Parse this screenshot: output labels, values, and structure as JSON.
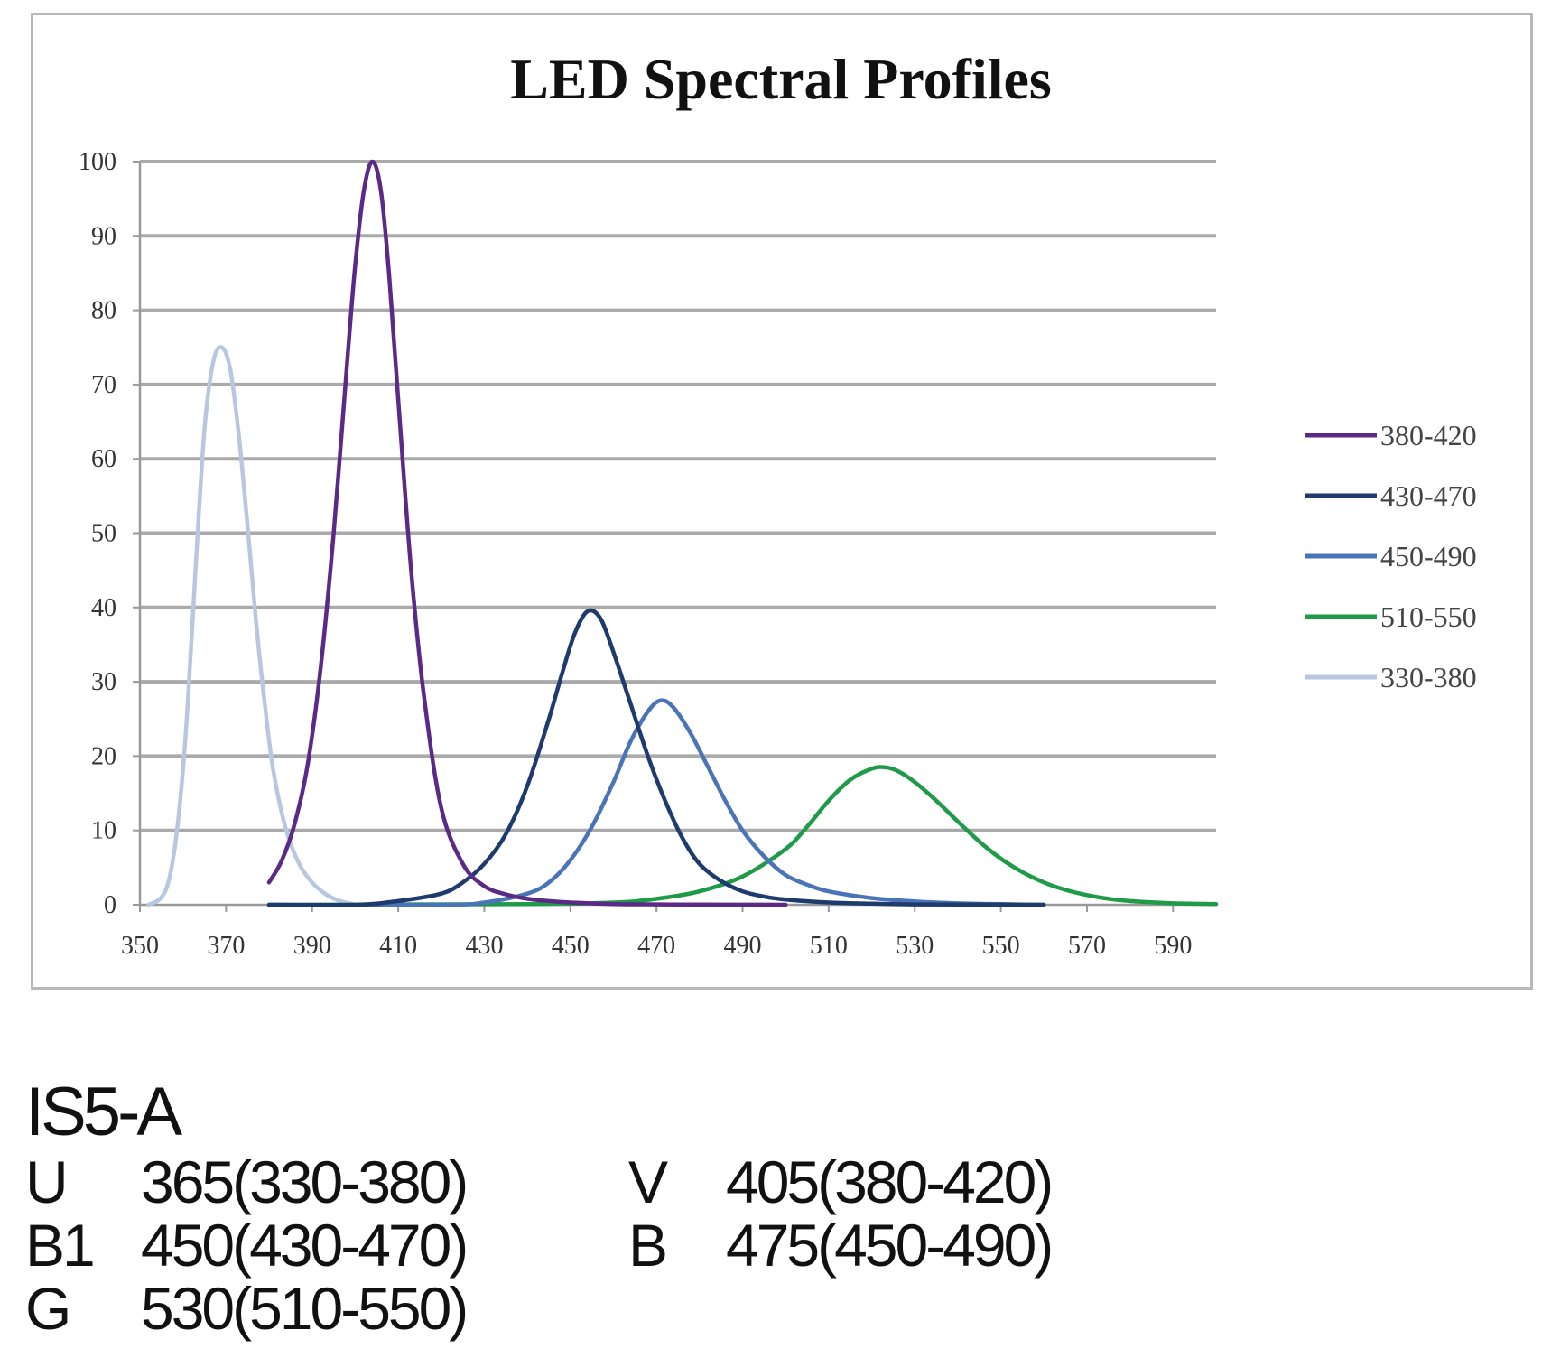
{
  "chart_data": {
    "type": "line",
    "title": "LED Spectral Profiles",
    "xlabel": "",
    "ylabel": "",
    "xlim": [
      350,
      600
    ],
    "ylim": [
      0,
      100
    ],
    "x_ticks": [
      "350",
      "370",
      "390",
      "410",
      "430",
      "450",
      "470",
      "490",
      "510",
      "530",
      "550",
      "570",
      "590"
    ],
    "y_ticks": [
      "0",
      "10",
      "20",
      "30",
      "40",
      "50",
      "60",
      "70",
      "80",
      "90",
      "100"
    ],
    "grid": true,
    "legend_position": "right",
    "series": [
      {
        "name": "380-420",
        "color": "#5b2a86",
        "x": [
          380,
          383,
          386,
          389,
          392,
          395,
          398,
          400,
          402,
          404,
          406,
          408,
          410,
          413,
          416,
          420,
          425,
          430,
          435,
          440,
          445,
          450,
          460,
          470,
          480,
          490,
          500
        ],
        "y": [
          3,
          6,
          11,
          19,
          32,
          50,
          72,
          86,
          96,
          100,
          96,
          84,
          68,
          45,
          28,
          13,
          5.5,
          2.5,
          1.4,
          0.8,
          0.5,
          0.3,
          0.1,
          0.05,
          0.02,
          0.01,
          0
        ]
      },
      {
        "name": "430-470",
        "color": "#1f3b6e",
        "x": [
          380,
          400,
          410,
          420,
          425,
          430,
          435,
          440,
          445,
          448,
          451,
          454,
          457,
          460,
          464,
          468,
          472,
          476,
          480,
          485,
          490,
          495,
          500,
          510,
          520,
          530,
          545,
          560
        ],
        "y": [
          0,
          0,
          0.5,
          1.5,
          3,
          5.5,
          9.5,
          16,
          25,
          31,
          36.5,
          39.5,
          38.5,
          34,
          27,
          20,
          14,
          9,
          5.5,
          3.2,
          1.8,
          1.1,
          0.7,
          0.3,
          0.15,
          0.05,
          0.02,
          0
        ]
      },
      {
        "name": "450-490",
        "color": "#4b74b8",
        "x": [
          380,
          420,
          430,
          440,
          445,
          450,
          455,
          460,
          464,
          468,
          471,
          474,
          478,
          482,
          486,
          490,
          495,
          500,
          505,
          510,
          520,
          530,
          540,
          550,
          560
        ],
        "y": [
          0,
          0,
          0.3,
          1.5,
          3,
          6,
          10.5,
          16.5,
          22,
          26,
          27.5,
          26.5,
          23,
          18.5,
          14,
          10,
          6.5,
          4,
          2.7,
          1.8,
          0.9,
          0.45,
          0.2,
          0.08,
          0
        ]
      },
      {
        "name": "510-550",
        "color": "#1f9a48",
        "x": [
          380,
          440,
          460,
          470,
          480,
          490,
          500,
          505,
          510,
          515,
          520,
          523,
          526,
          530,
          535,
          540,
          545,
          550,
          555,
          560,
          565,
          570,
          575,
          580,
          590,
          600
        ],
        "y": [
          0,
          0.1,
          0.3,
          0.8,
          1.8,
          3.8,
          7.5,
          10.5,
          14,
          16.8,
          18.3,
          18.5,
          18,
          16.5,
          14,
          11.2,
          8.5,
          6.2,
          4.4,
          3,
          2,
          1.3,
          0.8,
          0.5,
          0.2,
          0.1
        ]
      },
      {
        "name": "330-380",
        "color": "#b8c7e0",
        "x": [
          352,
          355,
          357,
          359,
          361,
          363,
          365,
          367,
          369,
          371,
          373,
          375,
          377,
          379,
          381,
          384,
          387,
          390,
          393,
          396,
          400
        ],
        "y": [
          0,
          1,
          4,
          12,
          26,
          46,
          64,
          73,
          75,
          72,
          63,
          51,
          38,
          27,
          18,
          10,
          5.5,
          3,
          1.5,
          0.6,
          0
        ]
      }
    ]
  },
  "led_info": {
    "model": "IS5-A",
    "rows": [
      {
        "code_1": "U",
        "spec_1": "365(330-380)",
        "code_2": "V",
        "spec_2": "405(380-420)"
      },
      {
        "code_1": "B1",
        "spec_1": "450(430-470)",
        "code_2": "B",
        "spec_2": "475(450-490)"
      },
      {
        "code_1": "G",
        "spec_1": "530(510-550)",
        "code_2": "",
        "spec_2": ""
      }
    ]
  }
}
